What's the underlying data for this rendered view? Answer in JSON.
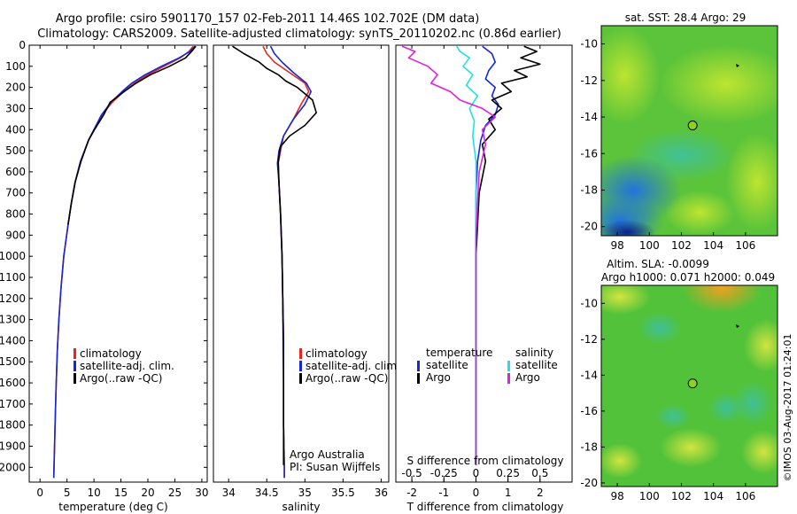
{
  "header": {
    "title_line1": "Argo profile: csiro 5901170_157 02-Feb-2011 14.46S 102.702E (DM data)",
    "title_line2": "Climatology: CARS2009. Satellite-adjusted climatology: synTS_20110202.nc (0.86d earlier)"
  },
  "credit": {
    "text": "©IMOS 03-Aug-2017 01:24:01",
    "org": "Argo Australia",
    "pi": "PI: Susan Wijffels"
  },
  "colors": {
    "climatology": "#e8241c",
    "satellite": "#1426d8",
    "argo": "#000000",
    "sal_satellite": "#20e0e8",
    "sal_argo": "#e020e0"
  },
  "chart_data": [
    {
      "type": "line",
      "title": "",
      "xlabel": "temperature (deg C)",
      "ylabel": "",
      "xlim": [
        -2,
        31
      ],
      "ylim": [
        2070,
        0
      ],
      "xticks": [
        0,
        5,
        10,
        15,
        20,
        25,
        30
      ],
      "yticks": [
        0,
        100,
        200,
        300,
        400,
        500,
        600,
        700,
        800,
        900,
        1000,
        1100,
        1200,
        1300,
        1400,
        1500,
        1600,
        1700,
        1800,
        1900,
        2000
      ],
      "legend": [
        "climatology",
        "satellite-adj. clim.",
        "Argo(..raw -QC)"
      ],
      "series": [
        {
          "name": "climatology",
          "color": "#e8241c",
          "x": [
            28.4,
            27.6,
            26,
            23,
            20,
            17.5,
            15.5,
            13.4,
            11.5,
            10,
            9,
            7.5,
            6.5,
            5.8,
            5.2,
            4.4,
            3.9,
            3.5,
            3.2,
            3,
            2.9,
            2.8,
            2.7,
            2.6,
            2.55
          ],
          "y": [
            5,
            30,
            60,
            100,
            140,
            180,
            220,
            270,
            330,
            400,
            450,
            550,
            650,
            750,
            850,
            1000,
            1150,
            1300,
            1450,
            1600,
            1700,
            1800,
            1900,
            2000,
            2050
          ]
        },
        {
          "name": "satellite-adj. clim.",
          "color": "#1426d8",
          "x": [
            28.7,
            27.8,
            25.8,
            22.5,
            19.5,
            17,
            15.2,
            13.2,
            11.4,
            10,
            9,
            7.5,
            6.5,
            5.8,
            5.2,
            4.4,
            3.9,
            3.5,
            3.2,
            3,
            2.9,
            2.8,
            2.7,
            2.6,
            2.55
          ],
          "y": [
            5,
            30,
            60,
            100,
            140,
            180,
            220,
            270,
            330,
            400,
            450,
            550,
            650,
            750,
            850,
            1000,
            1150,
            1300,
            1450,
            1600,
            1700,
            1800,
            1900,
            2000,
            2050
          ]
        },
        {
          "name": "Argo(..raw -QC)",
          "color": "#000000",
          "x": [
            28.9,
            28.1,
            27,
            24,
            20.5,
            17.8,
            15.6,
            13,
            11.8,
            10.1,
            9,
            7.6,
            6.5,
            5.8,
            5.2
          ],
          "y": [
            5,
            30,
            60,
            100,
            140,
            180,
            220,
            270,
            330,
            400,
            450,
            550,
            650,
            750,
            850
          ]
        }
      ]
    },
    {
      "type": "line",
      "title": "",
      "xlabel": "salinity",
      "ylabel": "",
      "xlim": [
        33.8,
        36.1
      ],
      "ylim": [
        2070,
        0
      ],
      "xticks": [
        34,
        34.5,
        35,
        35.5,
        36
      ],
      "legend": [
        "climatology",
        "satellite-adj. clim.",
        "Argo(..raw -QC)"
      ],
      "series": [
        {
          "name": "climatology",
          "color": "#e8241c",
          "x": [
            34.45,
            34.5,
            34.6,
            34.8,
            35.0,
            35.05,
            34.95,
            34.85,
            34.72,
            34.68,
            34.65,
            34.66,
            34.68,
            34.7,
            34.71,
            34.72,
            34.72,
            34.72,
            34.73,
            34.73
          ],
          "y": [
            5,
            40,
            80,
            130,
            180,
            220,
            280,
            350,
            430,
            500,
            560,
            650,
            800,
            1000,
            1200,
            1400,
            1600,
            1800,
            2000,
            2050
          ]
        },
        {
          "name": "satellite-adj. clim.",
          "color": "#1426d8",
          "x": [
            34.55,
            34.6,
            34.7,
            34.85,
            35.02,
            35.08,
            35.0,
            34.85,
            34.72,
            34.66,
            34.64,
            34.66,
            34.68,
            34.7,
            34.71,
            34.72,
            34.72,
            34.72,
            34.73,
            34.73
          ],
          "y": [
            5,
            40,
            80,
            130,
            180,
            220,
            280,
            350,
            430,
            500,
            560,
            650,
            800,
            1000,
            1200,
            1400,
            1600,
            1800,
            2000,
            2050
          ]
        },
        {
          "name": "Argo(..raw -QC)",
          "color": "#000000",
          "x": [
            34.05,
            34.2,
            34.4,
            34.5,
            34.65,
            34.75,
            34.9,
            35.1,
            35.15,
            35.0,
            34.8,
            34.68,
            34.65,
            34.66,
            34.68,
            34.7,
            34.71,
            34.72,
            34.72
          ],
          "y": [
            5,
            40,
            80,
            110,
            140,
            170,
            200,
            260,
            320,
            380,
            430,
            480,
            550,
            650,
            800,
            1000,
            1200,
            1600,
            1990
          ]
        }
      ]
    },
    {
      "type": "line",
      "title": "",
      "xlabel": "T difference from climatology",
      "xlabel2": "S difference from climatology",
      "ylabel": "",
      "xlim": [
        -2.5,
        3
      ],
      "xlim_top": [
        -0.625,
        0.75
      ],
      "ylim": [
        2070,
        0
      ],
      "xticks": [
        -2,
        -1,
        0,
        1,
        2
      ],
      "xticks_s": [
        -0.5,
        -0.25,
        0,
        0.25,
        0.5
      ],
      "legend_header_t": "temperature",
      "legend_header_s": "salinity",
      "legend": [
        "satellite",
        "Argo",
        "satellite",
        "Argo"
      ],
      "series": [
        {
          "name": "temperature satellite",
          "color": "#1426d8",
          "x": [
            0.2,
            0.5,
            0.6,
            0.4,
            0.3,
            0.6,
            0.5,
            0.7,
            0.6,
            0.3,
            0.15,
            0.05,
            0,
            0,
            0
          ],
          "y": [
            5,
            40,
            80,
            120,
            160,
            200,
            240,
            280,
            330,
            380,
            450,
            550,
            700,
            1000,
            1990
          ]
        },
        {
          "name": "temperature Argo",
          "color": "#000000",
          "x": [
            1.5,
            1.9,
            1.4,
            2.0,
            1.2,
            1.6,
            0.8,
            1.1,
            0.5,
            0.8,
            0.4,
            0.6,
            0.2,
            0.3,
            0.1,
            0,
            0
          ],
          "y": [
            5,
            30,
            60,
            90,
            120,
            150,
            180,
            220,
            260,
            300,
            350,
            400,
            470,
            550,
            700,
            1000,
            1990
          ]
        },
        {
          "name": "salinity satellite",
          "color": "#20e0e8",
          "x": [
            -0.6,
            -0.5,
            -0.2,
            -0.4,
            -0.1,
            -0.3,
            0.05,
            -0.2,
            -0.05,
            -0.1,
            0,
            0,
            0
          ],
          "y": [
            5,
            30,
            60,
            100,
            140,
            190,
            240,
            300,
            360,
            430,
            550,
            800,
            1990
          ]
        },
        {
          "name": "salinity Argo",
          "color": "#e020e0",
          "x": [
            -2.3,
            -1.9,
            -2.1,
            -1.5,
            -1.2,
            -1.4,
            -0.8,
            -0.5,
            0.2,
            0.6,
            0.2,
            0.3,
            0.1,
            0,
            0
          ],
          "y": [
            5,
            30,
            60,
            100,
            140,
            180,
            220,
            260,
            300,
            340,
            400,
            470,
            600,
            900,
            1990
          ]
        }
      ]
    },
    {
      "type": "heatmap",
      "title": "sat. SST: 28.4  Argo: 29",
      "xlim": [
        97,
        108
      ],
      "ylim": [
        -20.5,
        -9
      ],
      "xticks": [
        98,
        100,
        102,
        104,
        106
      ],
      "yticks": [
        -10,
        -12,
        -14,
        -16,
        -18,
        -20
      ],
      "marker": {
        "lon": 102.702,
        "lat": -14.46
      }
    },
    {
      "type": "heatmap",
      "title": "Altim. SLA: -0.0099",
      "subtitle": "Argo h1000: 0.071 h2000: 0.049",
      "xlim": [
        97,
        108
      ],
      "ylim": [
        -20.2,
        -9
      ],
      "xticks": [
        98,
        100,
        102,
        104,
        106
      ],
      "yticks": [
        -10,
        -12,
        -14,
        -16,
        -18,
        -20
      ],
      "marker": {
        "lon": 102.702,
        "lat": -14.46
      }
    }
  ]
}
